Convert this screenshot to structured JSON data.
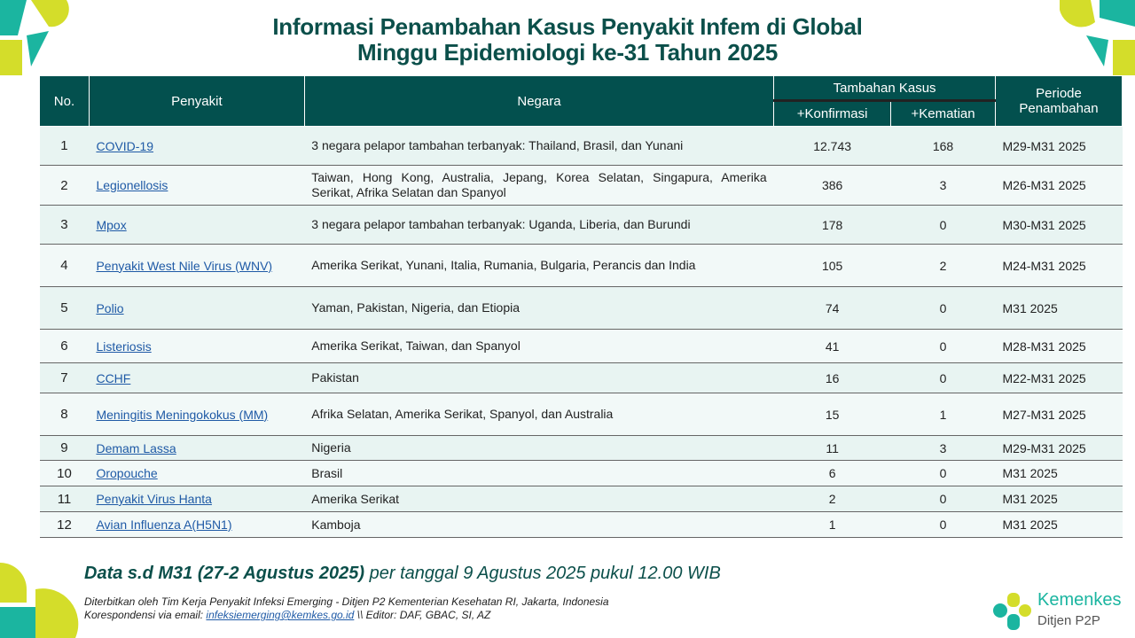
{
  "title": {
    "line1": "Informasi Penambahan Kasus Penyakit Infem di Global",
    "line2": "Minggu Epidemiologi ke-31 Tahun 2025"
  },
  "table": {
    "headers": {
      "no": "No.",
      "penyakit": "Penyakit",
      "negara": "Negara",
      "tambahan": "Tambahan Kasus",
      "konfirmasi": "+Konfirmasi",
      "kematian": "+Kematian",
      "periode": "Periode Penambahan"
    },
    "rows": [
      {
        "no": "1",
        "penyakit": "COVID-19",
        "negara": "3 negara pelapor tambahan terbanyak: Thailand, Brasil, dan Yunani",
        "konfirmasi": "12.743",
        "kematian": "168",
        "periode": "M29-M31 2025"
      },
      {
        "no": "2",
        "penyakit": "Legionellosis",
        "negara": "Taiwan, Hong Kong, Australia, Jepang, Korea Selatan, Singapura, Amerika Serikat, Afrika Selatan dan Spanyol",
        "konfirmasi": "386",
        "kematian": "3",
        "periode": "M26-M31 2025"
      },
      {
        "no": "3",
        "penyakit": "Mpox",
        "negara": "3 negara pelapor tambahan terbanyak: Uganda, Liberia, dan Burundi",
        "konfirmasi": "178",
        "kematian": "0",
        "periode": "M30-M31 2025"
      },
      {
        "no": "4",
        "penyakit": "Penyakit West Nile Virus (WNV)",
        "negara": "Amerika Serikat, Yunani, Italia, Rumania, Bulgaria, Perancis dan India",
        "konfirmasi": "105",
        "kematian": "2",
        "periode": "M24-M31 2025"
      },
      {
        "no": "5",
        "penyakit": "Polio",
        "negara": "Yaman, Pakistan, Nigeria, dan Etiopia",
        "konfirmasi": "74",
        "kematian": "0",
        "periode": "M31 2025"
      },
      {
        "no": "6",
        "penyakit": "Listeriosis",
        "negara": "Amerika Serikat, Taiwan, dan Spanyol",
        "konfirmasi": "41",
        "kematian": "0",
        "periode": "M28-M31 2025"
      },
      {
        "no": "7",
        "penyakit": "CCHF",
        "negara": "Pakistan",
        "konfirmasi": "16",
        "kematian": "0",
        "periode": "M22-M31 2025"
      },
      {
        "no": "8",
        "penyakit": "Meningitis Meningokokus (MM)",
        "negara": "Afrika Selatan, Amerika Serikat, Spanyol, dan Australia",
        "konfirmasi": "15",
        "kematian": "1",
        "periode": "M27-M31 2025"
      },
      {
        "no": "9",
        "penyakit": "Demam Lassa",
        "negara": "Nigeria",
        "konfirmasi": "11",
        "kematian": "3",
        "periode": "M29-M31 2025"
      },
      {
        "no": "10",
        "penyakit": "Oropouche",
        "negara": "Brasil",
        "konfirmasi": "6",
        "kematian": "0",
        "periode": "M31 2025"
      },
      {
        "no": "11",
        "penyakit": "Penyakit Virus Hanta",
        "negara": "Amerika Serikat",
        "konfirmasi": "2",
        "kematian": "0",
        "periode": "M31 2025"
      },
      {
        "no": "12",
        "penyakit": "Avian Influenza A(H5N1)",
        "negara": "Kamboja",
        "konfirmasi": "1",
        "kematian": "0",
        "periode": "M31 2025"
      }
    ]
  },
  "footer": {
    "data_bold": "Data s.d M31 (27-2 Agustus 2025)",
    "data_rest": " per tanggal 9 Agustus 2025 pukul 12.00 WIB",
    "published": "Diterbitkan oleh Tim Kerja Penyakit Infeksi Emerging - Ditjen P2 Kementerian Kesehatan RI, Jakarta, Indonesia",
    "corr_prefix": "Korespondensi via email: ",
    "email": "infeksiemerging@kemkes.go.id",
    "editor": " \\\\ Editor: DAF, GBAC, SI, AZ"
  },
  "logo": {
    "name": "Kemenkes",
    "sub": "Ditjen P2P"
  },
  "colors": {
    "header": "#03504e",
    "teal": "#1bb5a0",
    "lime": "#d4dd2a",
    "link": "#1f5aa6"
  }
}
